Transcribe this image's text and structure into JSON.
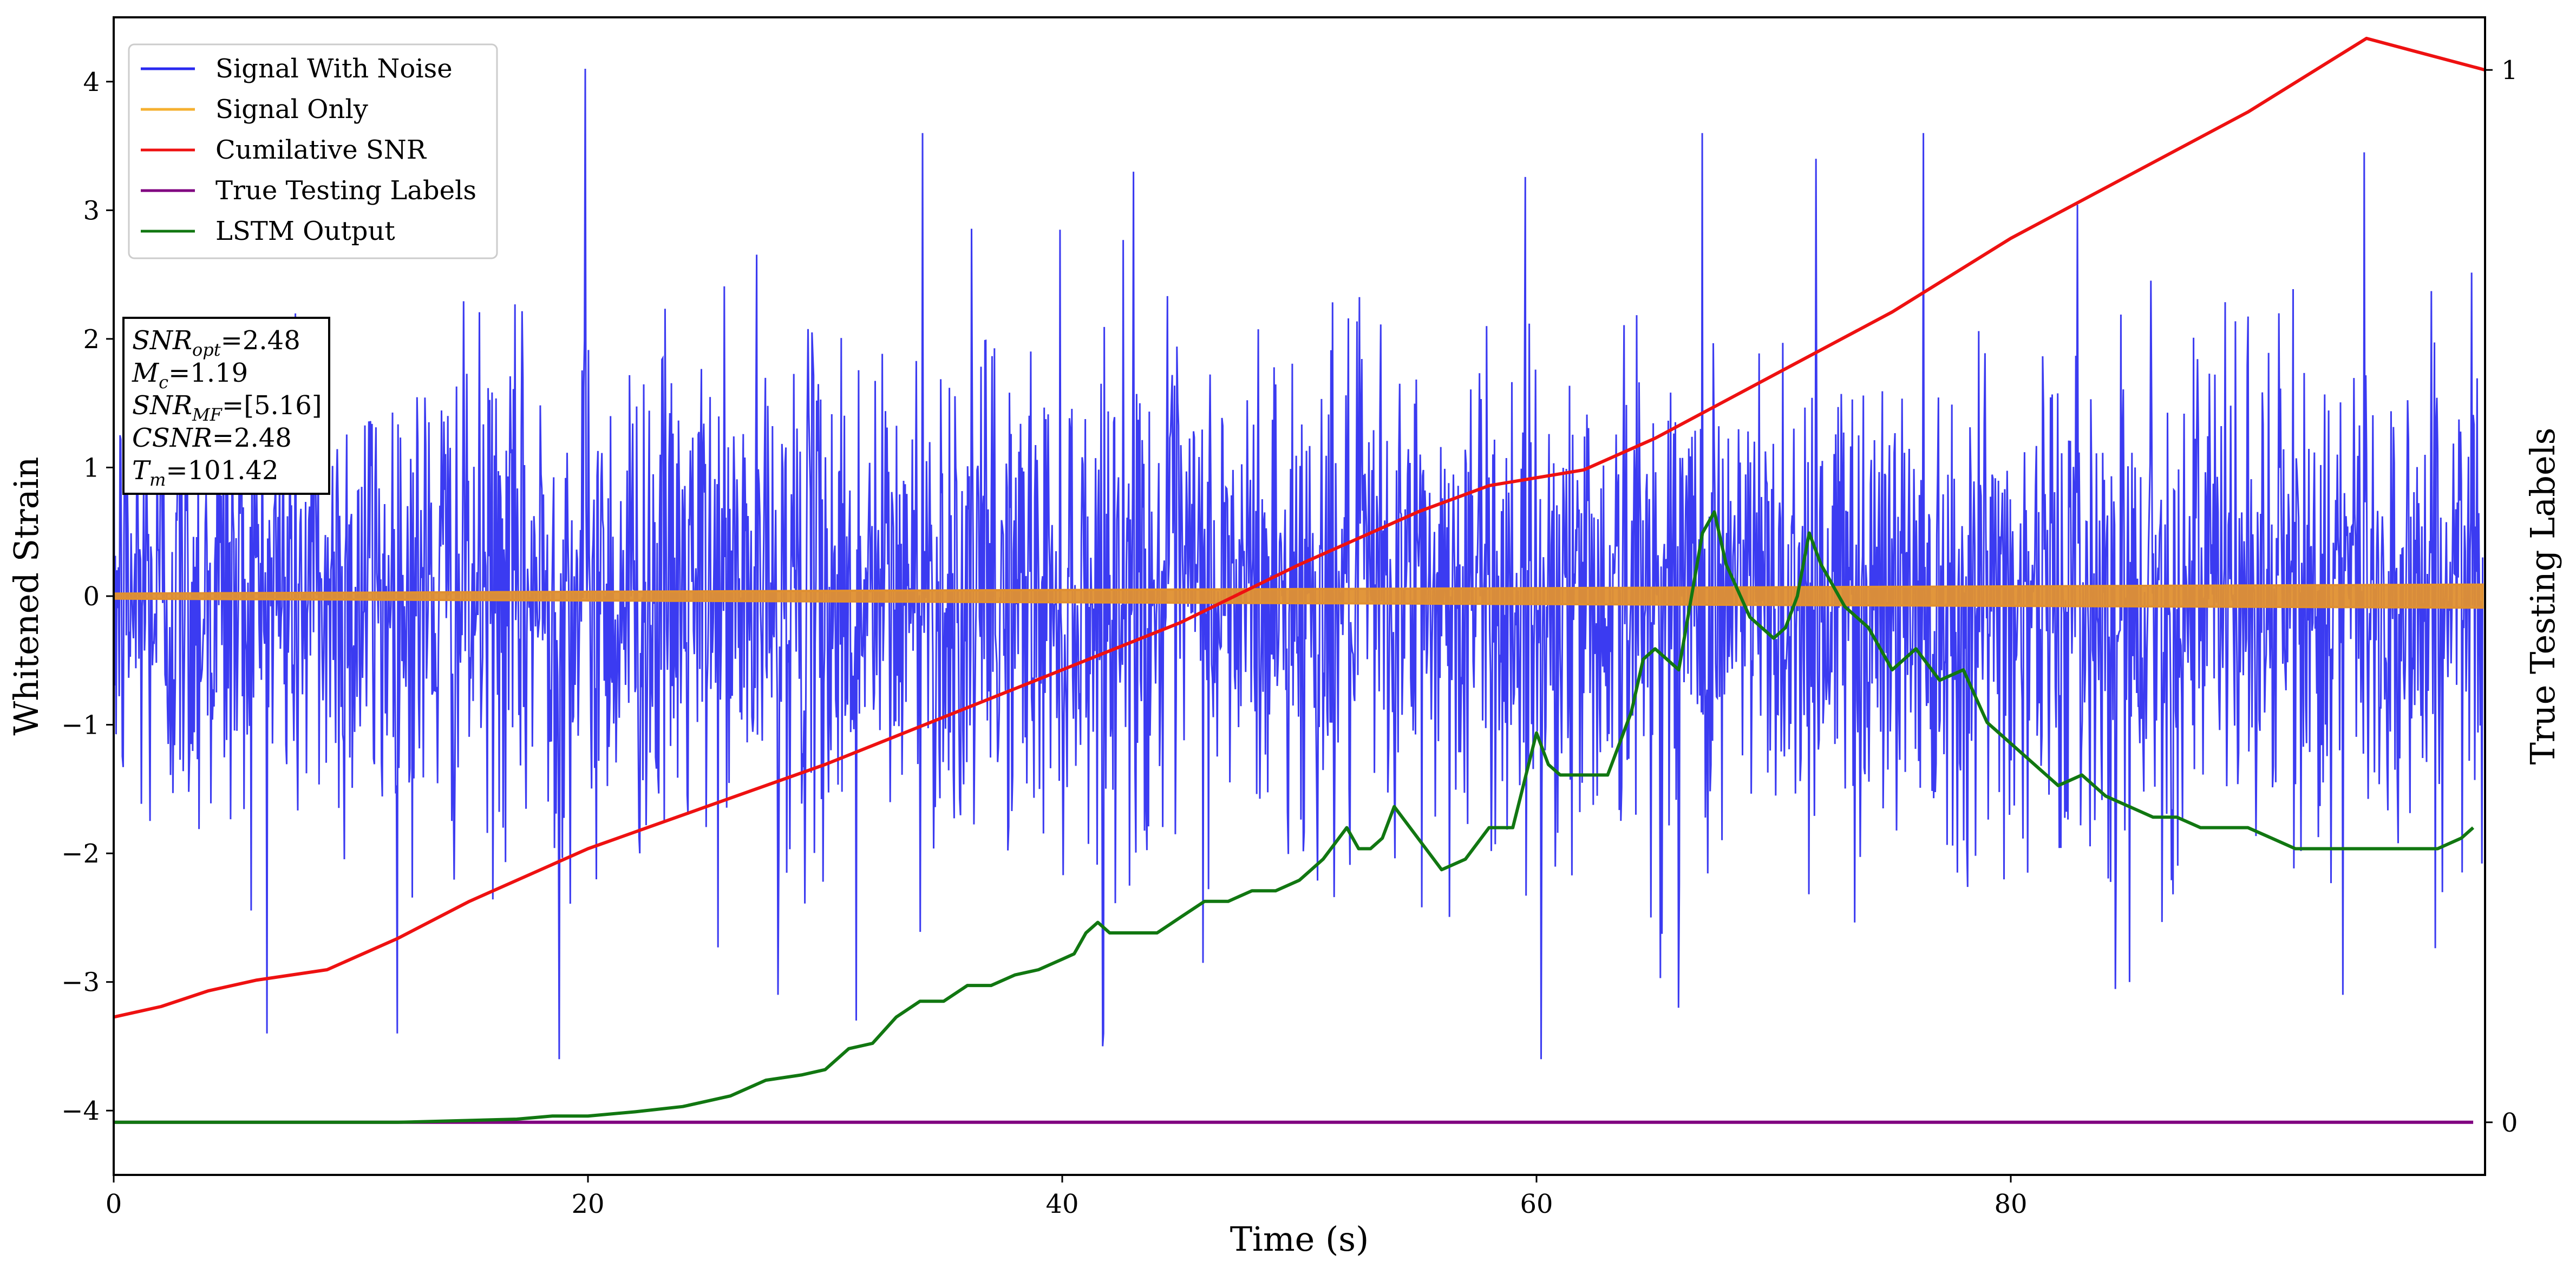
{
  "chart_data": {
    "type": "line",
    "xlabel": "Time (s)",
    "ylabel": "Whitened Strain",
    "y2label": "True Testing Labels",
    "xlim": [
      0,
      100
    ],
    "ylim": [
      -4.5,
      4.5
    ],
    "y2lim": [
      -0.05,
      1.05
    ],
    "xticks": [
      0,
      20,
      40,
      60,
      80
    ],
    "yticks": [
      4,
      3,
      2,
      1,
      0,
      -1,
      -2,
      -3,
      -4
    ],
    "ytick_labels": [
      "4",
      "3",
      "2",
      "1",
      "0",
      "−1",
      "−2",
      "−3",
      "−4"
    ],
    "y2ticks": [
      1,
      0
    ],
    "y2tick_labels": [
      "1",
      "0"
    ],
    "legend_position": "top-left",
    "grid": false,
    "series": [
      {
        "name": "Signal With Noise",
        "color": "#2a2af0",
        "axis": "left",
        "noise_std": 0.95,
        "peaks": [
          [
            19.9,
            4.1
          ],
          [
            18.8,
            -3.6
          ],
          [
            31.3,
            -3.3
          ],
          [
            34.1,
            3.6
          ],
          [
            41.7,
            -3.5
          ],
          [
            60.2,
            -3.6
          ],
          [
            67.0,
            3.6
          ],
          [
            71.8,
            3.4
          ],
          [
            76.3,
            3.6
          ],
          [
            94.9,
            3.45
          ],
          [
            28.0,
            -3.1
          ],
          [
            66.0,
            -3.2
          ],
          [
            85.0,
            -3.0
          ],
          [
            94.0,
            -3.1
          ],
          [
            43.0,
            3.3
          ]
        ]
      },
      {
        "name": "Signal Only",
        "color": "#f5a623",
        "axis": "left",
        "amplitude_start": 0.02,
        "amplitude_end": 0.09
      },
      {
        "name": "Cumilative SNR",
        "color": "#ee1111",
        "axis": "right",
        "x": [
          0,
          2,
          4,
          6,
          9,
          12,
          15,
          20,
          25,
          30,
          35,
          40,
          45,
          50,
          55,
          58,
          62,
          65,
          70,
          75,
          80,
          85,
          90,
          95,
          100
        ],
        "y": [
          0.1,
          0.11,
          0.125,
          0.135,
          0.145,
          0.175,
          0.21,
          0.26,
          0.3,
          0.34,
          0.385,
          0.43,
          0.475,
          0.53,
          0.58,
          0.605,
          0.62,
          0.65,
          0.71,
          0.77,
          0.84,
          0.9,
          0.96,
          1.03,
          1.0
        ]
      },
      {
        "name": "True Testing Labels",
        "color": "#800080",
        "axis": "right",
        "x": [
          0,
          99.5
        ],
        "y": [
          0,
          0
        ]
      },
      {
        "name": "LSTM Output",
        "color": "#117711",
        "axis": "right",
        "x": [
          0,
          12,
          17,
          18.5,
          20,
          22,
          24,
          26,
          27.5,
          29,
          30,
          31,
          32,
          33,
          34,
          35,
          36,
          37,
          38,
          39,
          40,
          40.5,
          41,
          41.5,
          42,
          43,
          44,
          45,
          46,
          47,
          48,
          49,
          50,
          51,
          52,
          52.5,
          53,
          53.5,
          54,
          55,
          56,
          57,
          58,
          59,
          60,
          60.5,
          61,
          62,
          63,
          64,
          64.5,
          65,
          66,
          67,
          67.5,
          68,
          69,
          70,
          70.5,
          71,
          71.5,
          72,
          73,
          74,
          75,
          76,
          77,
          78,
          79,
          80,
          81,
          82,
          83,
          84,
          85,
          86,
          87,
          88,
          89,
          90,
          91,
          92,
          93,
          94,
          95,
          96,
          97,
          98,
          99,
          99.5
        ],
        "y": [
          0,
          0,
          0.003,
          0.006,
          0.006,
          0.01,
          0.015,
          0.025,
          0.04,
          0.045,
          0.05,
          0.07,
          0.075,
          0.1,
          0.115,
          0.115,
          0.13,
          0.13,
          0.14,
          0.145,
          0.155,
          0.16,
          0.18,
          0.19,
          0.18,
          0.18,
          0.18,
          0.195,
          0.21,
          0.21,
          0.22,
          0.22,
          0.23,
          0.25,
          0.28,
          0.26,
          0.26,
          0.27,
          0.3,
          0.27,
          0.24,
          0.25,
          0.28,
          0.28,
          0.37,
          0.34,
          0.33,
          0.33,
          0.33,
          0.39,
          0.44,
          0.45,
          0.43,
          0.56,
          0.58,
          0.53,
          0.48,
          0.46,
          0.47,
          0.5,
          0.56,
          0.53,
          0.49,
          0.47,
          0.43,
          0.45,
          0.42,
          0.43,
          0.38,
          0.36,
          0.34,
          0.32,
          0.33,
          0.31,
          0.3,
          0.29,
          0.29,
          0.28,
          0.28,
          0.28,
          0.27,
          0.26,
          0.26,
          0.26,
          0.26,
          0.26,
          0.26,
          0.26,
          0.27,
          0.28
        ]
      }
    ]
  },
  "info_box": {
    "lines": [
      {
        "main": "SNR",
        "sub": "opt",
        "rest": "=2.48"
      },
      {
        "main": "M",
        "sub": "c",
        "rest": "=1.19"
      },
      {
        "main": "SNR",
        "sub": "MF",
        "rest": "=[5.16]"
      },
      {
        "main": "CSNR",
        "sub": "",
        "rest": "=2.48"
      },
      {
        "main": "T",
        "sub": "m",
        "rest": "=101.42"
      }
    ]
  }
}
